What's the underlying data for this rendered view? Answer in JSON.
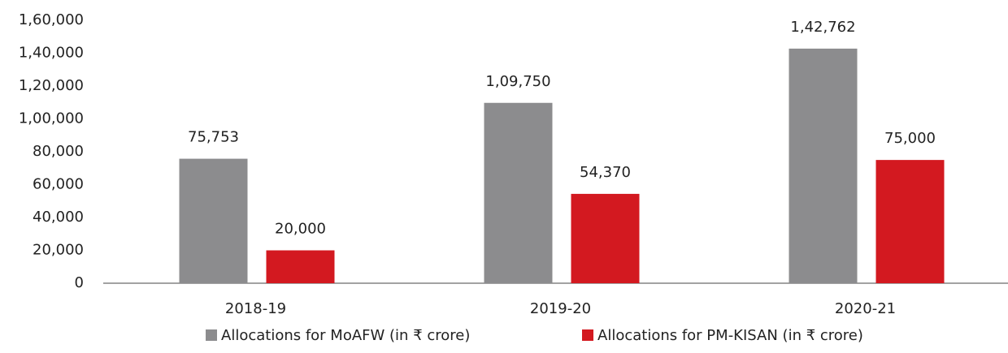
{
  "chart_data": {
    "type": "bar",
    "categories": [
      "2018-19",
      "2019-20",
      "2020-21"
    ],
    "series": [
      {
        "name": "Allocations for MoAFW (in ₹ crore)",
        "color": "#8c8c8e",
        "values": [
          75753,
          109750,
          142762
        ],
        "value_labels": [
          "75,753",
          "1,09,750",
          "1,42,762"
        ]
      },
      {
        "name": "Allocations for PM-KISAN (in ₹ crore)",
        "color": "#d31920",
        "values": [
          20000,
          54370,
          75000
        ],
        "value_labels": [
          "20,000",
          "54,370",
          "75,000"
        ]
      }
    ],
    "ylim": [
      0,
      160000
    ],
    "yticks": [
      0,
      {
        "value": 20000,
        "label": "20,000"
      },
      {
        "value": 40000,
        "label": "40,000"
      },
      {
        "value": 60000,
        "label": "60,000"
      },
      {
        "value": 80000,
        "label": "80,000"
      },
      {
        "value": 100000,
        "label": "1,00,000"
      },
      {
        "value": 120000,
        "label": "1,20,000"
      },
      {
        "value": 140000,
        "label": "1,40,000"
      },
      {
        "value": 160000,
        "label": "1,60,000"
      }
    ],
    "grid": false,
    "legend": "bottom"
  }
}
